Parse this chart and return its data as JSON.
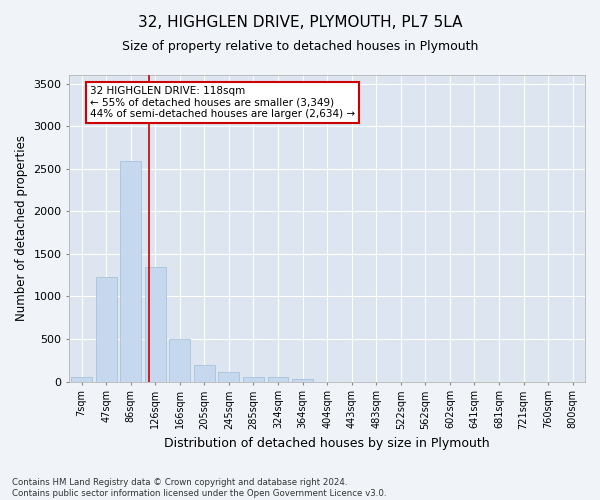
{
  "title": "32, HIGHGLEN DRIVE, PLYMOUTH, PL7 5LA",
  "subtitle": "Size of property relative to detached houses in Plymouth",
  "xlabel": "Distribution of detached houses by size in Plymouth",
  "ylabel": "Number of detached properties",
  "bar_color": "#c5d8ee",
  "bar_edge_color": "#a0bcd8",
  "background_color": "#dde6f0",
  "grid_color": "#ffffff",
  "fig_background": "#f0f4f8",
  "categories": [
    "7sqm",
    "47sqm",
    "86sqm",
    "126sqm",
    "166sqm",
    "205sqm",
    "245sqm",
    "285sqm",
    "324sqm",
    "364sqm",
    "404sqm",
    "443sqm",
    "483sqm",
    "522sqm",
    "562sqm",
    "602sqm",
    "641sqm",
    "681sqm",
    "721sqm",
    "760sqm",
    "800sqm"
  ],
  "values": [
    50,
    1230,
    2590,
    1340,
    500,
    190,
    110,
    50,
    50,
    35,
    0,
    0,
    0,
    0,
    0,
    0,
    0,
    0,
    0,
    0,
    0
  ],
  "ylim": [
    0,
    3600
  ],
  "yticks": [
    0,
    500,
    1000,
    1500,
    2000,
    2500,
    3000,
    3500
  ],
  "property_line_x": 2.73,
  "annotation_text_line1": "32 HIGHGLEN DRIVE: 118sqm",
  "annotation_text_line2": "← 55% of detached houses are smaller (3,349)",
  "annotation_text_line3": "44% of semi-detached houses are larger (2,634) →",
  "annotation_box_color": "#ffffff",
  "annotation_border_color": "#cc0000",
  "footer_line1": "Contains HM Land Registry data © Crown copyright and database right 2024.",
  "footer_line2": "Contains public sector information licensed under the Open Government Licence v3.0.",
  "title_fontsize": 11,
  "subtitle_fontsize": 9,
  "ylabel_fontsize": 8.5,
  "xlabel_fontsize": 9
}
